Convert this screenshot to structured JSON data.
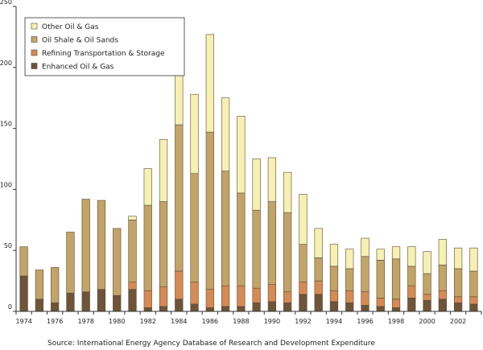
{
  "chart_data": {
    "type": "bar",
    "stacked": true,
    "years": [
      1974,
      1975,
      1976,
      1977,
      1978,
      1979,
      1980,
      1981,
      1982,
      1983,
      1984,
      1985,
      1986,
      1987,
      1988,
      1989,
      1990,
      1991,
      1992,
      1993,
      1994,
      1995,
      1996,
      1997,
      1998,
      1999,
      2000,
      2001,
      2002,
      2003
    ],
    "x_tick_labels": [
      "1974",
      "1976",
      "1978",
      "1980",
      "1982",
      "1984",
      "1986",
      "1988",
      "1990",
      "1992",
      "1994",
      "1996",
      "1998",
      "2000",
      "2002"
    ],
    "ylim": [
      0,
      250
    ],
    "y_ticks": [
      0,
      50,
      100,
      150,
      200,
      250
    ],
    "grid": false,
    "legend_position": "top-left",
    "series": [
      {
        "name": "Enhanced Oil & Gas",
        "color": "#6e5438",
        "values": [
          29,
          10,
          7,
          15,
          16,
          18,
          13,
          18,
          3,
          4,
          10,
          6,
          3,
          4,
          4,
          7,
          8,
          7,
          14,
          14,
          8,
          7,
          5,
          4,
          3,
          11,
          9,
          10,
          7,
          6
        ]
      },
      {
        "name": "Refining Transportation & Storage",
        "color": "#d68a54",
        "values": [
          0,
          0,
          0,
          0,
          0,
          0,
          0,
          6,
          14,
          16,
          23,
          18,
          15,
          17,
          17,
          12,
          14,
          9,
          10,
          11,
          9,
          10,
          11,
          7,
          7,
          10,
          5,
          7,
          5,
          6
        ]
      },
      {
        "name": "Oil Shale & Oil Sands",
        "color": "#c2a468",
        "values": [
          24,
          24,
          29,
          50,
          76,
          73,
          55,
          51,
          70,
          70,
          120,
          89,
          129,
          94,
          76,
          64,
          68,
          65,
          31,
          19,
          20,
          18,
          29,
          31,
          33,
          16,
          17,
          21,
          23,
          21
        ]
      },
      {
        "name": "Other Oil & Gas",
        "color": "#f6f0b2",
        "values": [
          0,
          0,
          0,
          0,
          0,
          0,
          0,
          3,
          30,
          51,
          57,
          65,
          80,
          60,
          63,
          42,
          36,
          33,
          41,
          24,
          18,
          16,
          15,
          9,
          10,
          16,
          18,
          21,
          17,
          19
        ]
      }
    ],
    "legend_order": [
      "Other Oil & Gas",
      "Oil Shale & Oil Sands",
      "Refining Transportation & Storage",
      "Enhanced Oil & Gas"
    ]
  },
  "source_note": "Source: International Energy Agency Database of Research and Development Expenditure"
}
